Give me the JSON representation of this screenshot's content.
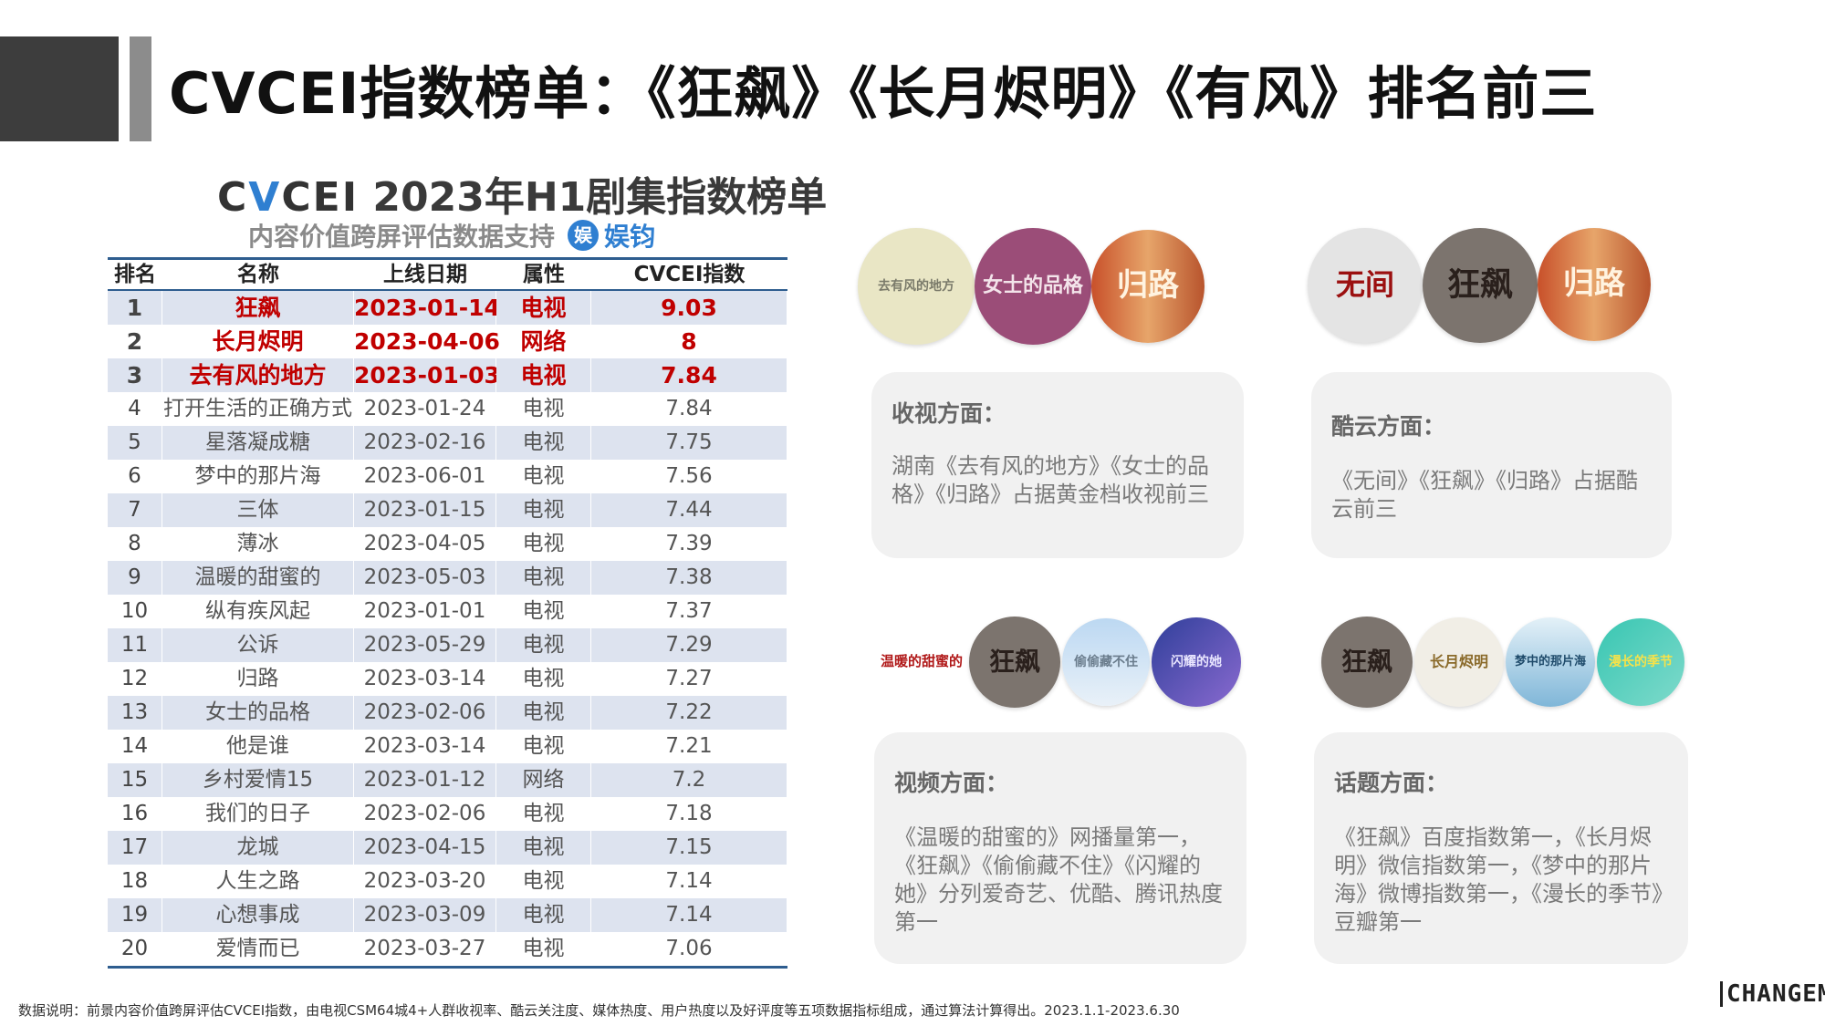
{
  "page_title": "CVCEI指数榜单：《狂飙》《长月烬明》《有风》排名前三",
  "table": {
    "title_logo_a": "C",
    "title_logo_v": "V",
    "title_logo_b": "CEI",
    "title_rest": " 2023年H1剧集指数榜单",
    "subtitle": "内容价值跨屏评估数据支持",
    "partner_icon": "娱",
    "partner_name": "娱钧",
    "headers": [
      "排名",
      "名称",
      "上线日期",
      "属性",
      "CVCEI指数"
    ],
    "rows": [
      [
        "1",
        "狂飙",
        "2023-01-14",
        "电视",
        "9.03"
      ],
      [
        "2",
        "长月烬明",
        "2023-04-06",
        "网络",
        "8"
      ],
      [
        "3",
        "去有风的地方",
        "2023-01-03",
        "电视",
        "7.84"
      ],
      [
        "4",
        "打开生活的正确方式",
        "2023-01-24",
        "电视",
        "7.84"
      ],
      [
        "5",
        "星落凝成糖",
        "2023-02-16",
        "电视",
        "7.75"
      ],
      [
        "6",
        "梦中的那片海",
        "2023-06-01",
        "电视",
        "7.56"
      ],
      [
        "7",
        "三体",
        "2023-01-15",
        "电视",
        "7.44"
      ],
      [
        "8",
        "薄冰",
        "2023-04-05",
        "电视",
        "7.39"
      ],
      [
        "9",
        "温暖的甜蜜的",
        "2023-05-03",
        "电视",
        "7.38"
      ],
      [
        "10",
        "纵有疾风起",
        "2023-01-01",
        "电视",
        "7.37"
      ],
      [
        "11",
        "公诉",
        "2023-05-29",
        "电视",
        "7.29"
      ],
      [
        "12",
        "归路",
        "2023-03-14",
        "电视",
        "7.27"
      ],
      [
        "13",
        "女士的品格",
        "2023-02-06",
        "电视",
        "7.22"
      ],
      [
        "14",
        "他是谁",
        "2023-03-14",
        "电视",
        "7.21"
      ],
      [
        "15",
        "乡村爱情15",
        "2023-01-12",
        "网络",
        "7.2"
      ],
      [
        "16",
        "我们的日子",
        "2023-02-06",
        "电视",
        "7.18"
      ],
      [
        "17",
        "龙城",
        "2023-04-15",
        "电视",
        "7.15"
      ],
      [
        "18",
        "人生之路",
        "2023-03-20",
        "电视",
        "7.14"
      ],
      [
        "19",
        "心想事成",
        "2023-03-09",
        "电视",
        "7.14"
      ],
      [
        "20",
        "爱情而已",
        "2023-03-27",
        "电视",
        "7.06"
      ]
    ]
  },
  "cards": {
    "ratings": {
      "heading": "收视方面：",
      "body": "湖南《去有风的地方》《女士的品格》《归路》占据黄金档收视前三",
      "thumbs": [
        "去有风的地方",
        "女士的品格",
        "归路"
      ]
    },
    "kuyun": {
      "heading": "酷云方面：",
      "body": "《无间》《狂飙》《归路》占据酷云前三",
      "thumbs": [
        "无间",
        "狂飙",
        "归路"
      ]
    },
    "video": {
      "heading": "视频方面：",
      "body": "《温暖的甜蜜的》网播量第一，《狂飙》《偷偷藏不住》《闪耀的她》分列爱奇艺、优酷、腾讯热度第一",
      "thumbs": [
        "温暖的甜蜜的",
        "狂飙",
        "偷偷藏不住",
        "闪耀的她"
      ]
    },
    "topic": {
      "heading": "话题方面：",
      "body": "《狂飙》百度指数第一，《长月烬明》微信指数第一，《梦中的那片海》微博指数第一，《漫长的季节》豆瓣第一",
      "thumbs": [
        "狂飙",
        "长月烬明",
        "梦中的那片海",
        "漫长的季节"
      ]
    }
  },
  "footnote": "数据说明：前景内容价值跨屏评估CVCEI指数，由电视CSM64城4+人群收视率、酷云关注度、媒体热度、用户热度以及好评度等五项数据指标组成，通过算法计算得出。2023.1.1-2023.6.30",
  "brand": "CHANGEMO",
  "colors": {
    "accent_red": "#c00000",
    "table_rule": "#2e5d8f",
    "row_alt": "#dde3ef",
    "card_bg": "#f1f1f1"
  }
}
